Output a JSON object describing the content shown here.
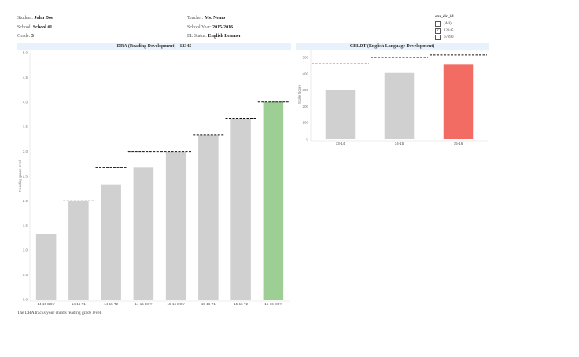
{
  "header": {
    "student_label": "Student:",
    "student": "John Doe",
    "school_label": "School:",
    "school": "School #1",
    "grade_label": "Grade:",
    "grade": "3",
    "teacher_label": "Teacher:",
    "teacher": "Ms. Nemo",
    "year_label": "School Year:",
    "year": "2015-2016",
    "el_label": "EL Status:",
    "el": "English Learner"
  },
  "filter": {
    "title": "stu_elc_id",
    "options": [
      {
        "label": "(All)",
        "checked": false
      },
      {
        "label": "12345",
        "checked": true
      },
      {
        "label": "67890",
        "checked": false
      }
    ]
  },
  "note": "The DRA tracks your child's reading grade level.",
  "chart_data": [
    {
      "type": "bar",
      "title": "DRA (Reading Development) - 12345",
      "ylabel": "Reading grade level",
      "ylim": [
        0,
        5
      ],
      "yticks": [
        "0.0",
        "0.5",
        "1.0",
        "1.5",
        "2.0",
        "2.5",
        "3.0",
        "3.5",
        "4.0",
        "4.5",
        "5.0"
      ],
      "categories": [
        "14-15 BOY",
        "14-15 T1",
        "14-15 T2",
        "14-15 EOY",
        "15-16 BOY",
        "15-16 T1",
        "15-16 T2",
        "15-16 EOY"
      ],
      "values": [
        1.33,
        2.0,
        2.33,
        2.67,
        3.0,
        3.33,
        3.67,
        4.0
      ],
      "targets": [
        1.33,
        2.0,
        2.67,
        3.0,
        3.0,
        3.33,
        3.67,
        4.0
      ],
      "colors": [
        "#d0d0d0",
        "#d0d0d0",
        "#d0d0d0",
        "#d0d0d0",
        "#d0d0d0",
        "#d0d0d0",
        "#d0d0d0",
        "#9dcf94"
      ]
    },
    {
      "type": "bar",
      "title": "CELDT (English Language Development)",
      "ylabel": "Scale Score",
      "ylim": [
        0,
        548
      ],
      "yticks": [
        "0",
        "100",
        "200",
        "300",
        "400",
        "500"
      ],
      "categories": [
        "13-14",
        "14-15",
        "15-16"
      ],
      "values": [
        300,
        405,
        455
      ],
      "targets": [
        460,
        500,
        515
      ],
      "colors": [
        "#d0d0d0",
        "#d0d0d0",
        "#f26c64"
      ]
    }
  ]
}
